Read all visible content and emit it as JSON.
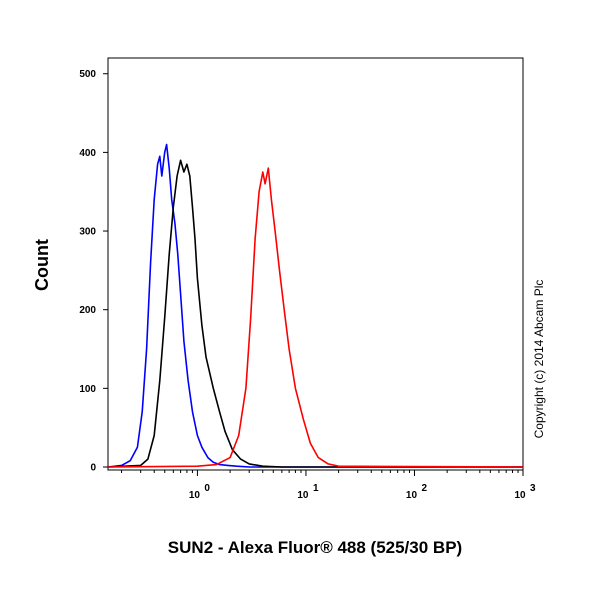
{
  "chart_data": {
    "type": "line",
    "xlabel": "SUN2 - Alexa Fluor® 488 (525/30 BP)",
    "ylabel": "Count",
    "x_scale": "log",
    "xlim": [
      0.15,
      1000
    ],
    "ylim": [
      0,
      520
    ],
    "y_ticks": [
      0,
      100,
      200,
      300,
      400,
      500
    ],
    "y_tick_labels": [
      "0",
      "100",
      "200",
      "300",
      "400",
      "500"
    ],
    "x_ticks": [
      1,
      10,
      100,
      1000
    ],
    "x_tick_bases": [
      "10",
      "10",
      "10",
      "10"
    ],
    "x_tick_exponents": [
      "0",
      "1",
      "2",
      "3"
    ],
    "copyright": "Copyright (c) 2014 Abcam Plc",
    "series": [
      {
        "color": "#0000ff",
        "x": [
          0.15,
          0.2,
          0.24,
          0.28,
          0.31,
          0.34,
          0.37,
          0.4,
          0.43,
          0.45,
          0.47,
          0.5,
          0.52,
          0.55,
          0.58,
          0.62,
          0.66,
          0.7,
          0.75,
          0.82,
          0.9,
          1.0,
          1.1,
          1.25,
          1.4,
          1.6,
          1.9,
          2.3,
          3,
          5,
          1000
        ],
        "y": [
          0,
          2,
          8,
          25,
          70,
          150,
          260,
          340,
          385,
          395,
          370,
          400,
          410,
          380,
          340,
          310,
          270,
          220,
          160,
          110,
          70,
          40,
          25,
          12,
          6,
          3,
          2,
          1,
          0,
          0,
          0
        ]
      },
      {
        "color": "#000000",
        "x": [
          0.15,
          0.3,
          0.35,
          0.4,
          0.45,
          0.5,
          0.55,
          0.6,
          0.65,
          0.7,
          0.75,
          0.8,
          0.85,
          0.9,
          0.95,
          1.0,
          1.1,
          1.2,
          1.4,
          1.6,
          1.8,
          2.1,
          2.5,
          3.0,
          4.0,
          6,
          1000
        ],
        "y": [
          0,
          2,
          10,
          40,
          110,
          190,
          270,
          330,
          370,
          390,
          375,
          385,
          370,
          330,
          290,
          240,
          180,
          140,
          100,
          70,
          45,
          22,
          10,
          4,
          1,
          0,
          0
        ]
      },
      {
        "color": "#ff0000",
        "x": [
          0.15,
          1.0,
          1.5,
          2.0,
          2.4,
          2.8,
          3.1,
          3.4,
          3.7,
          4.0,
          4.2,
          4.5,
          4.8,
          5.2,
          5.7,
          6.3,
          7.0,
          8.0,
          9.5,
          11,
          13,
          16,
          20,
          1000
        ],
        "y": [
          0,
          1,
          3,
          12,
          40,
          100,
          190,
          290,
          350,
          375,
          360,
          380,
          340,
          300,
          250,
          200,
          150,
          100,
          60,
          30,
          12,
          4,
          1,
          0
        ]
      }
    ]
  }
}
